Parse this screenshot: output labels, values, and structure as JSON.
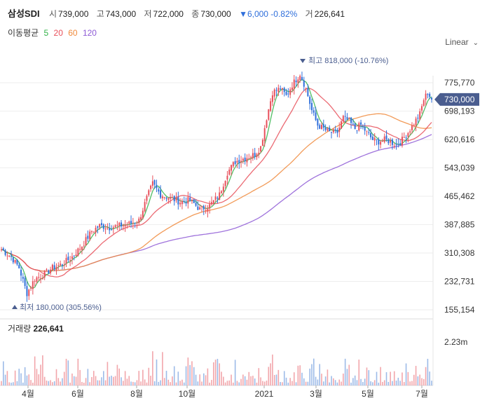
{
  "header": {
    "name": "삼성SDI",
    "open_label": "시",
    "open": "739,000",
    "high_label": "고",
    "high": "743,000",
    "low_label": "저",
    "low": "722,000",
    "close_label": "종",
    "close": "730,000",
    "change": "▼6,000 -0.82%",
    "volume_label": "거",
    "volume": "226,641"
  },
  "ma": {
    "label": "이동평균",
    "periods": [
      {
        "value": "5",
        "color": "#34b34a"
      },
      {
        "value": "20",
        "color": "#e8505b"
      },
      {
        "value": "60",
        "color": "#f08a3c"
      },
      {
        "value": "120",
        "color": "#8e5bd6"
      }
    ]
  },
  "scale_toggle": "Linear",
  "volume_pane": {
    "label": "거래량",
    "value": "226,641",
    "axis_label": "2.23m"
  },
  "colors": {
    "up": "#e8505b",
    "down": "#2f6fdb",
    "price_badge": "#4a5d8f",
    "ma5": "#34b34a",
    "ma20": "#e8505b",
    "ma60": "#f08a3c",
    "ma120": "#8e5bd6"
  },
  "chart_data": {
    "type": "candlestick",
    "y_ticks": [
      "775,770",
      "698,193",
      "620,616",
      "543,039",
      "465,462",
      "387,885",
      "310,308",
      "232,731",
      "155,154"
    ],
    "y_tick_values": [
      775770,
      698193,
      620616,
      543039,
      465462,
      387885,
      310308,
      232731,
      155154
    ],
    "ylim": [
      155154,
      818000
    ],
    "x_ticks": [
      "4월",
      "6월",
      "8월",
      "10월",
      "2021",
      "3월",
      "5월",
      "7월"
    ],
    "current_price_label": "730,000",
    "current_price": 730000,
    "high_annotation": {
      "label": "최고",
      "value": "818,000 (-10.76%)",
      "price": 818000
    },
    "low_annotation": {
      "label": "최저",
      "value": "180,000 (305.56%)",
      "price": 180000
    },
    "close_path": [
      [
        0,
        320000
      ],
      [
        5,
        300000
      ],
      [
        9,
        270000
      ],
      [
        13,
        200000
      ],
      [
        17,
        240000
      ],
      [
        21,
        250000
      ],
      [
        26,
        270000
      ],
      [
        31,
        280000
      ],
      [
        36,
        300000
      ],
      [
        41,
        330000
      ],
      [
        46,
        370000
      ],
      [
        50,
        385000
      ],
      [
        55,
        380000
      ],
      [
        60,
        385000
      ],
      [
        65,
        390000
      ],
      [
        70,
        400000
      ],
      [
        74,
        460000
      ],
      [
        77,
        500000
      ],
      [
        81,
        470000
      ],
      [
        86,
        460000
      ],
      [
        91,
        450000
      ],
      [
        96,
        455000
      ],
      [
        101,
        430000
      ],
      [
        106,
        440000
      ],
      [
        111,
        470000
      ],
      [
        115,
        530000
      ],
      [
        119,
        560000
      ],
      [
        124,
        570000
      ],
      [
        129,
        580000
      ],
      [
        132,
        600000
      ],
      [
        135,
        680000
      ],
      [
        138,
        750000
      ],
      [
        142,
        760000
      ],
      [
        145,
        740000
      ],
      [
        148,
        770000
      ],
      [
        152,
        800000
      ],
      [
        155,
        760000
      ],
      [
        158,
        700000
      ],
      [
        161,
        660000
      ],
      [
        164,
        650000
      ],
      [
        167,
        640000
      ],
      [
        171,
        640000
      ],
      [
        174,
        680000
      ],
      [
        177,
        670000
      ],
      [
        180,
        650000
      ],
      [
        183,
        660000
      ],
      [
        186,
        640000
      ],
      [
        189,
        620000
      ],
      [
        192,
        615000
      ],
      [
        195,
        620000
      ],
      [
        198,
        615000
      ],
      [
        201,
        605000
      ],
      [
        204,
        620000
      ],
      [
        207,
        640000
      ],
      [
        210,
        665000
      ],
      [
        213,
        690000
      ],
      [
        215,
        730000
      ],
      [
        217,
        750000
      ],
      [
        219,
        730000
      ]
    ]
  }
}
